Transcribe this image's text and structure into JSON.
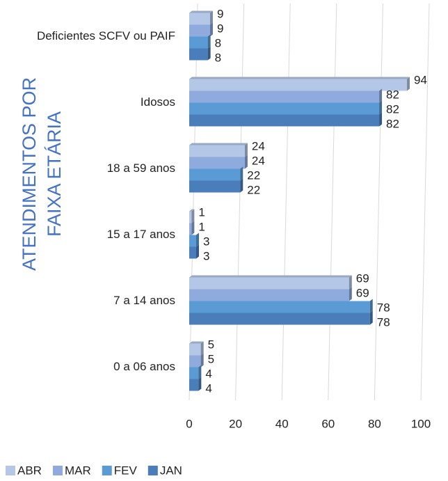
{
  "chart_data": {
    "type": "bar",
    "orientation": "horizontal",
    "ylabel": [
      "ATENDIMENTOS POR",
      "FAIXA ETÁRIA"
    ],
    "categories": [
      "Deficientes SCFV ou PAIF",
      "Idosos",
      "18 a 59 anos",
      "15 a 17 anos",
      "7 a 14 anos",
      "0 a 06 anos"
    ],
    "series": [
      {
        "name": "ABR",
        "color": "#b4c7e7",
        "values": [
          9,
          94,
          24,
          1,
          69,
          5
        ]
      },
      {
        "name": "MAR",
        "color": "#8faadc",
        "values": [
          9,
          82,
          24,
          1,
          69,
          5
        ]
      },
      {
        "name": "FEV",
        "color": "#5b9bd5",
        "values": [
          8,
          82,
          22,
          3,
          78,
          4
        ]
      },
      {
        "name": "JAN",
        "color": "#4a7ebb",
        "values": [
          8,
          82,
          22,
          3,
          78,
          4
        ]
      }
    ],
    "xlim": [
      0,
      100
    ],
    "xticks": [
      0,
      20,
      40,
      60,
      80,
      100
    ],
    "grid": true,
    "legend": "bottom"
  }
}
